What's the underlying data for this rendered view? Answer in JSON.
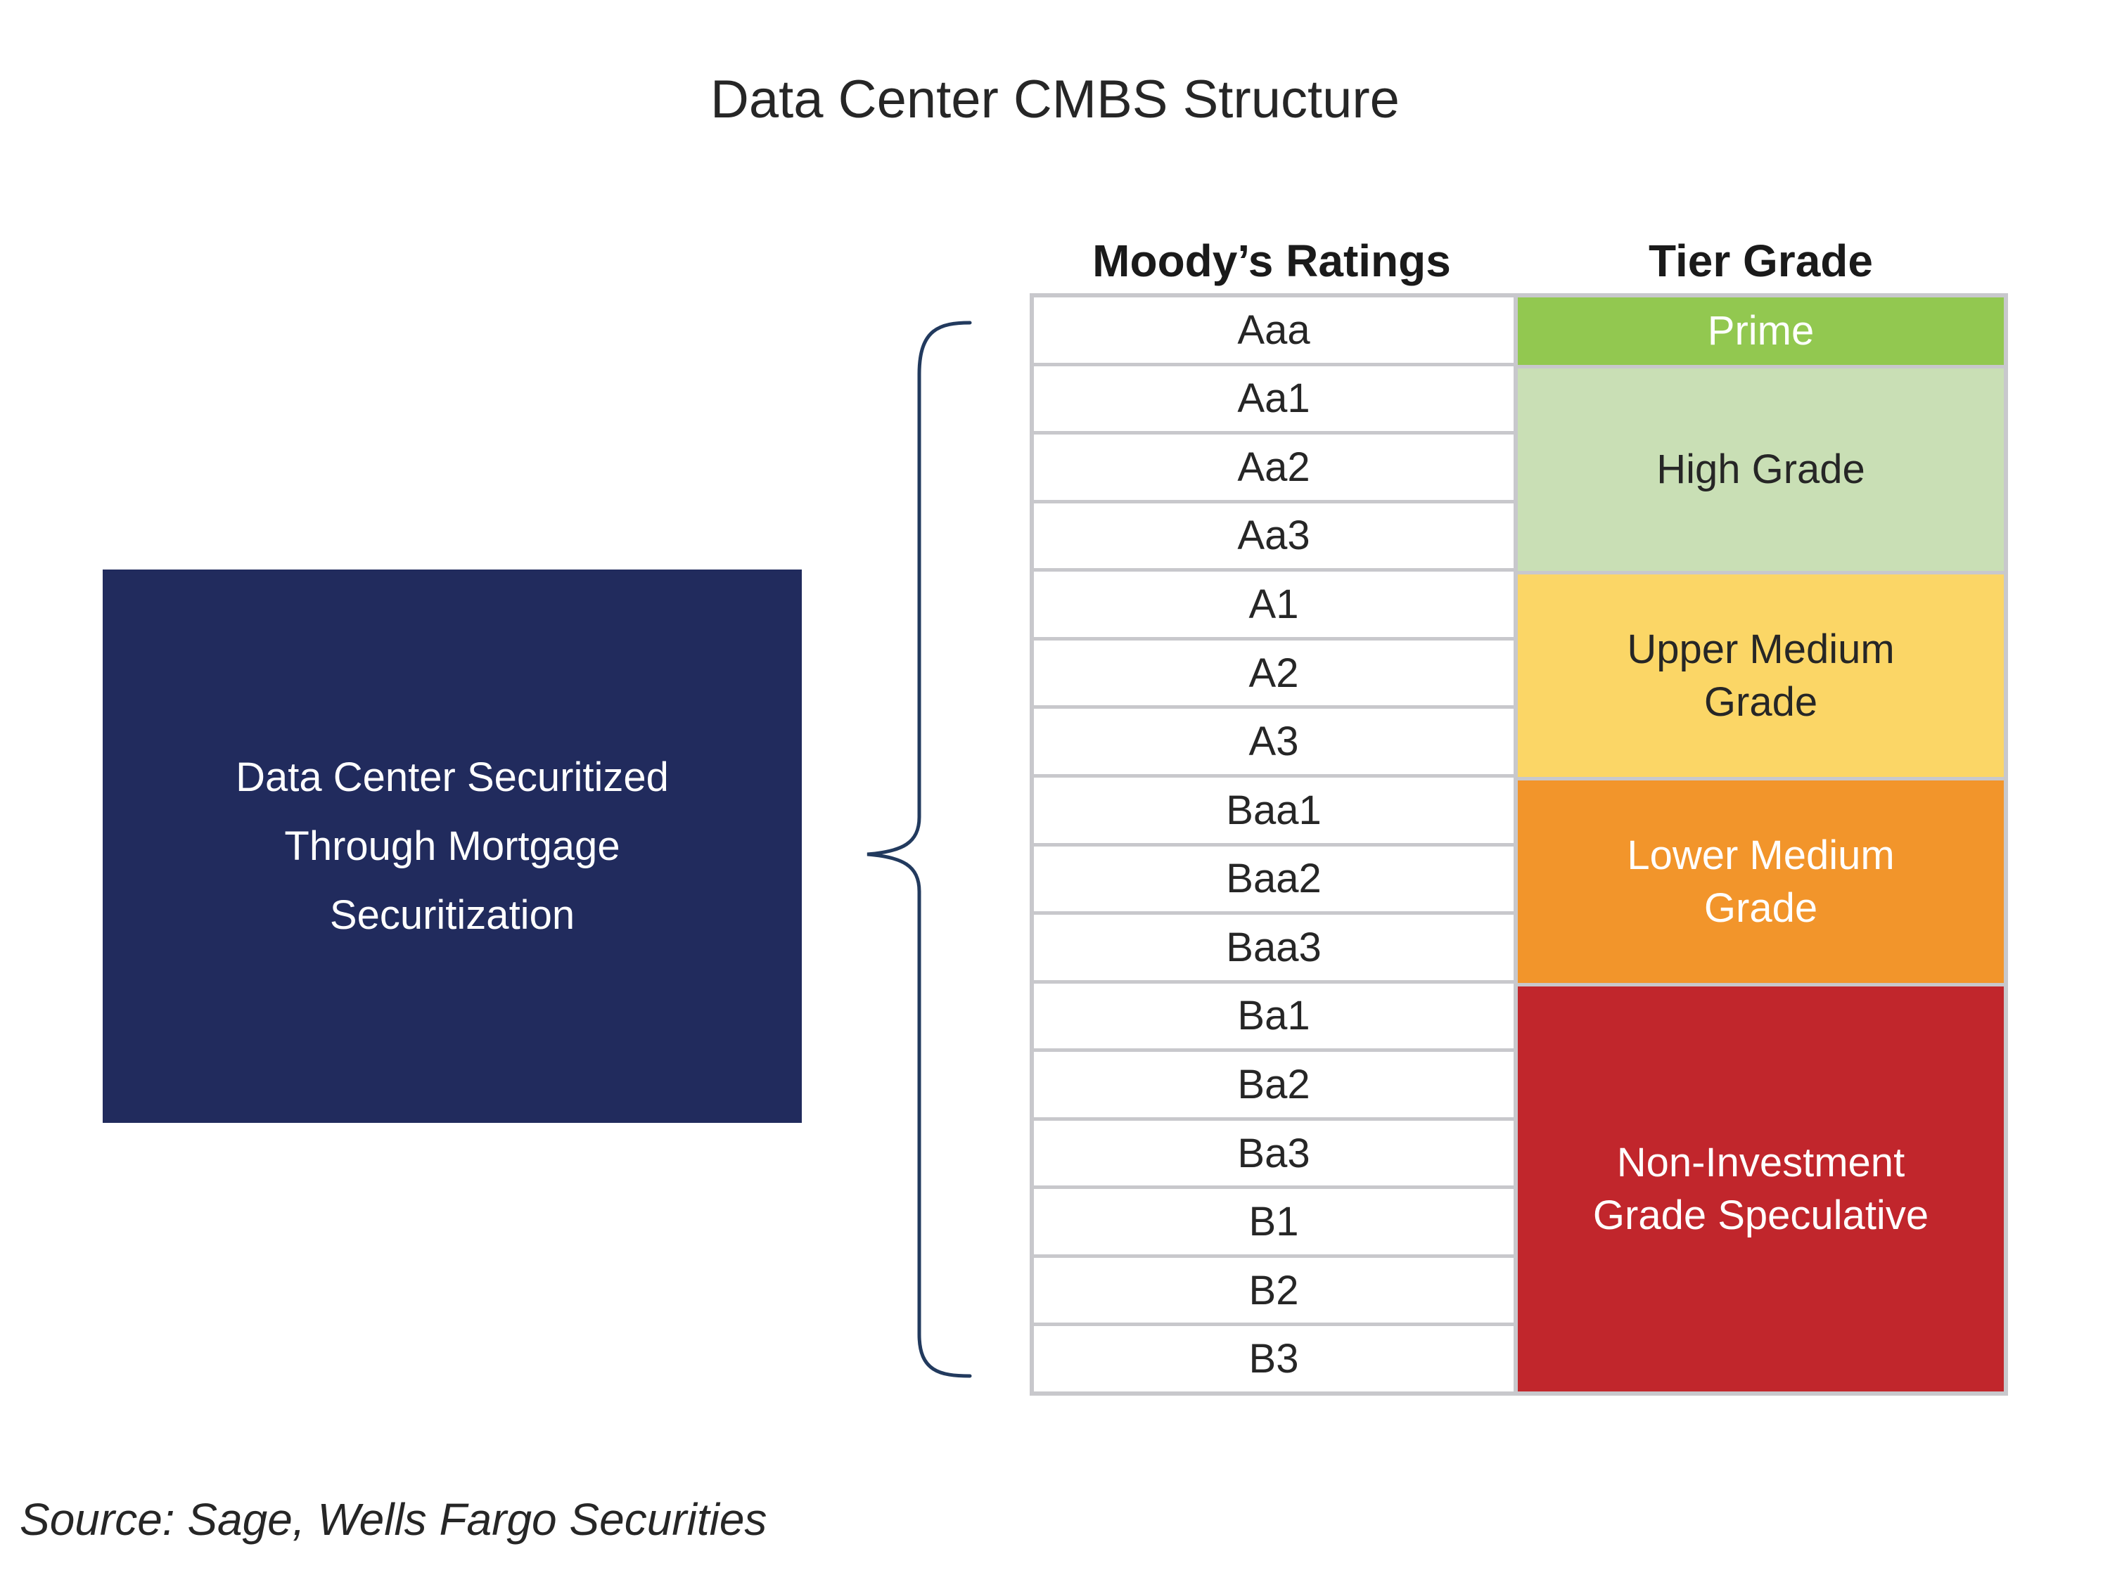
{
  "title": "Data Center CMBS Structure",
  "source_note": "Source: Sage, Wells Fargo Securities",
  "left_box": {
    "lines": [
      "Data Center Securitized",
      "Through Mortgage",
      "Securitization"
    ],
    "bg": "#212b5d",
    "text_color": "#ffffff"
  },
  "brace": {
    "color": "#223a5e",
    "semantic": "curly-brace linking securitization box to all rating rows"
  },
  "table": {
    "headers": {
      "ratings": "Moody’s Ratings",
      "tier": "Tier Grade"
    },
    "ratings": [
      "Aaa",
      "Aa1",
      "Aa2",
      "Aa3",
      "A1",
      "A2",
      "A3",
      "Baa1",
      "Baa2",
      "Baa3",
      "Ba1",
      "Ba2",
      "Ba3",
      "B1",
      "B2",
      "B3"
    ],
    "tiers": [
      {
        "label": "Prime",
        "lines": [
          "Prime"
        ],
        "row_span": 1,
        "bg": "#92c850",
        "text_color": "#ffffff"
      },
      {
        "label": "High Grade",
        "lines": [
          "High Grade"
        ],
        "row_span": 3,
        "bg": "#c9dfb5",
        "text_color": "#262626"
      },
      {
        "label": "Upper Medium Grade",
        "lines": [
          "Upper Medium",
          "Grade"
        ],
        "row_span": 3,
        "bg": "#fbd666",
        "text_color": "#262626"
      },
      {
        "label": "Lower Medium Grade",
        "lines": [
          "Lower Medium",
          "Grade"
        ],
        "row_span": 3,
        "bg": "#f2952b",
        "text_color": "#ffffff"
      },
      {
        "label": "Non-Investment Grade Speculative",
        "lines": [
          "Non-Investment",
          "Grade Speculative"
        ],
        "row_span": 6,
        "bg": "#c1262c",
        "text_color": "#ffffff"
      }
    ],
    "border_color": "#c8c8cc"
  }
}
